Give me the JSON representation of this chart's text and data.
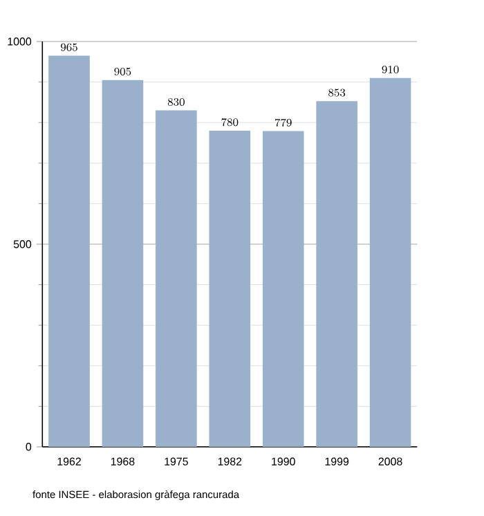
{
  "chart_data": {
    "type": "bar",
    "categories": [
      "1962",
      "1968",
      "1975",
      "1982",
      "1990",
      "1999",
      "2008"
    ],
    "values": [
      965,
      905,
      830,
      780,
      779,
      853,
      910
    ],
    "color": "#9ab1cb",
    "ylim": [
      0,
      1000
    ],
    "yticks": [
      0,
      500,
      1000
    ],
    "grid": "y",
    "data_labels": true,
    "annotations": [
      "fonte INSEE - elaborasion gràfega rancurada"
    ]
  }
}
